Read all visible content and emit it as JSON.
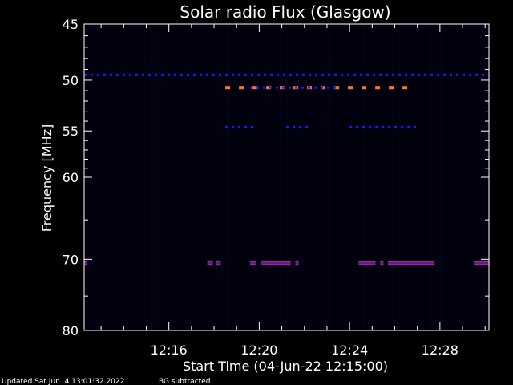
{
  "chart_data": {
    "type": "heatmap",
    "title": "Solar radio Flux (Glasgow)",
    "xlabel": "Start Time (04-Jun-22 12:15:00)",
    "ylabel": "Frequency [MHz]",
    "x_range_minutes": [
      12.25,
      30.17
    ],
    "y_range": [
      45,
      80
    ],
    "x_ticks": [
      {
        "label": "12:16",
        "minute": 16
      },
      {
        "label": "12:20",
        "minute": 20
      },
      {
        "label": "12:24",
        "minute": 24
      },
      {
        "label": "12:28",
        "minute": 28
      }
    ],
    "y_ticks": [
      {
        "label": "45",
        "value": 45
      },
      {
        "label": "50",
        "value": 50
      },
      {
        "label": "55",
        "value": 55
      },
      {
        "label": "60",
        "value": 60
      },
      {
        "label": "70",
        "value": 70
      },
      {
        "label": "80",
        "value": 80
      }
    ],
    "y_minor_ticks": [
      46,
      47,
      48,
      49,
      51,
      52,
      53,
      54,
      56,
      57,
      58,
      59,
      65,
      75
    ],
    "x_minor_step_minutes": 1,
    "colors": {
      "background": "#000000",
      "axes": "#ffffff",
      "band_blue": "#1a1aff",
      "band_orange": "#ff7733",
      "band_magenta": "#b0208c",
      "band_dim": "#0a0a3c"
    },
    "bands": [
      {
        "name": "49.5 MHz line",
        "freq": 49.5,
        "start": 12.25,
        "end": 30.17,
        "color": "band_blue",
        "style": "dashed"
      },
      {
        "name": "50.7 MHz orange",
        "freq": 50.7,
        "start": 18.5,
        "end": 27.1,
        "color": "band_orange",
        "style": "dashed"
      },
      {
        "name": "50.7 MHz blue",
        "freq": 50.7,
        "start": 19.6,
        "end": 23.6,
        "color": "band_blue",
        "style": "dashed"
      },
      {
        "name": "54.6 MHz a",
        "freq": 54.6,
        "start": 18.5,
        "end": 19.8,
        "color": "band_blue",
        "style": "dashed"
      },
      {
        "name": "54.6 MHz b",
        "freq": 54.6,
        "start": 21.2,
        "end": 22.4,
        "color": "band_blue",
        "style": "dashed"
      },
      {
        "name": "54.6 MHz c",
        "freq": 54.6,
        "start": 24.0,
        "end": 27.2,
        "color": "band_blue",
        "style": "dashed"
      },
      {
        "name": "70.5 MHz a",
        "freq": 70.5,
        "start": 12.25,
        "end": 12.4,
        "color": "band_magenta",
        "style": "solid"
      },
      {
        "name": "70.5 MHz b",
        "freq": 70.5,
        "start": 17.7,
        "end": 17.95,
        "color": "band_magenta",
        "style": "solid"
      },
      {
        "name": "70.5 MHz c",
        "freq": 70.5,
        "start": 18.1,
        "end": 18.3,
        "color": "band_magenta",
        "style": "solid"
      },
      {
        "name": "70.5 MHz d",
        "freq": 70.5,
        "start": 19.6,
        "end": 19.85,
        "color": "band_magenta",
        "style": "solid"
      },
      {
        "name": "70.5 MHz e",
        "freq": 70.5,
        "start": 20.1,
        "end": 21.4,
        "color": "band_magenta",
        "style": "solid"
      },
      {
        "name": "70.5 MHz f",
        "freq": 70.5,
        "start": 21.6,
        "end": 21.75,
        "color": "band_magenta",
        "style": "solid"
      },
      {
        "name": "70.5 MHz g",
        "freq": 70.5,
        "start": 24.4,
        "end": 25.15,
        "color": "band_magenta",
        "style": "solid"
      },
      {
        "name": "70.5 MHz h",
        "freq": 70.5,
        "start": 25.35,
        "end": 25.5,
        "color": "band_magenta",
        "style": "solid"
      },
      {
        "name": "70.5 MHz i",
        "freq": 70.5,
        "start": 25.7,
        "end": 27.75,
        "color": "band_magenta",
        "style": "solid"
      },
      {
        "name": "70.5 MHz j",
        "freq": 70.5,
        "start": 29.5,
        "end": 30.17,
        "color": "band_magenta",
        "style": "solid"
      }
    ]
  },
  "footer": {
    "updated": "Updated Sat Jun  4 13:01:32 2022",
    "mode": "BG subtracted"
  }
}
